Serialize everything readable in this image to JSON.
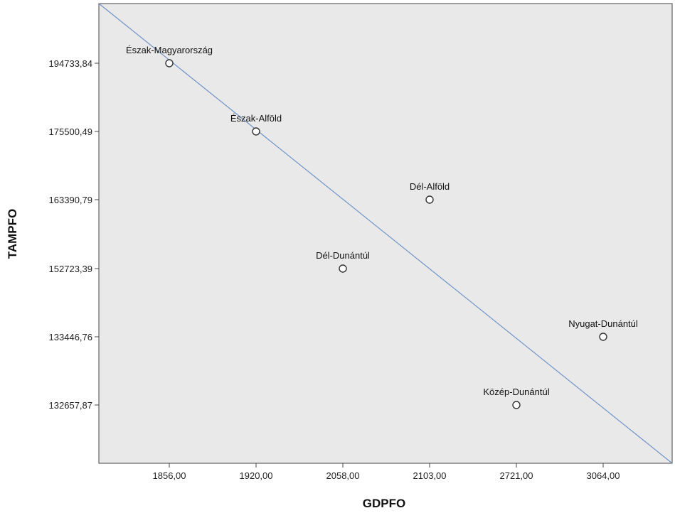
{
  "chart_data": {
    "type": "scatter",
    "xlabel": "GDPFO",
    "ylabel": "TAMPFO",
    "x_ticks": [
      "1856,00",
      "1920,00",
      "2058,00",
      "2103,00",
      "2721,00",
      "3064,00"
    ],
    "y_ticks": [
      "194733,84",
      "175500,49",
      "163390,79",
      "152723,39",
      "133446,76",
      "132657,87"
    ],
    "points": [
      {
        "label": "Észak-Magyarország",
        "x": "1856,00",
        "y": "194733,84"
      },
      {
        "label": "Észak-Alföld",
        "x": "1920,00",
        "y": "175500,49"
      },
      {
        "label": "Dél-Alföld",
        "x": "2103,00",
        "y": "163390,79"
      },
      {
        "label": "Dél-Dunántúl",
        "x": "2058,00",
        "y": "152723,39"
      },
      {
        "label": "Nyugat-Dunántúl",
        "x": "3064,00",
        "y": "133446,76"
      },
      {
        "label": "Közép-Dunántúl",
        "x": "2721,00",
        "y": "132657,87"
      }
    ],
    "fit_line": true,
    "grid": false,
    "legend": "none",
    "colors": {
      "plot_background": "#e9e9e9",
      "fit_line": "#6f93c8",
      "marker_edge": "#333333",
      "marker_fill": "#ffffff"
    }
  }
}
